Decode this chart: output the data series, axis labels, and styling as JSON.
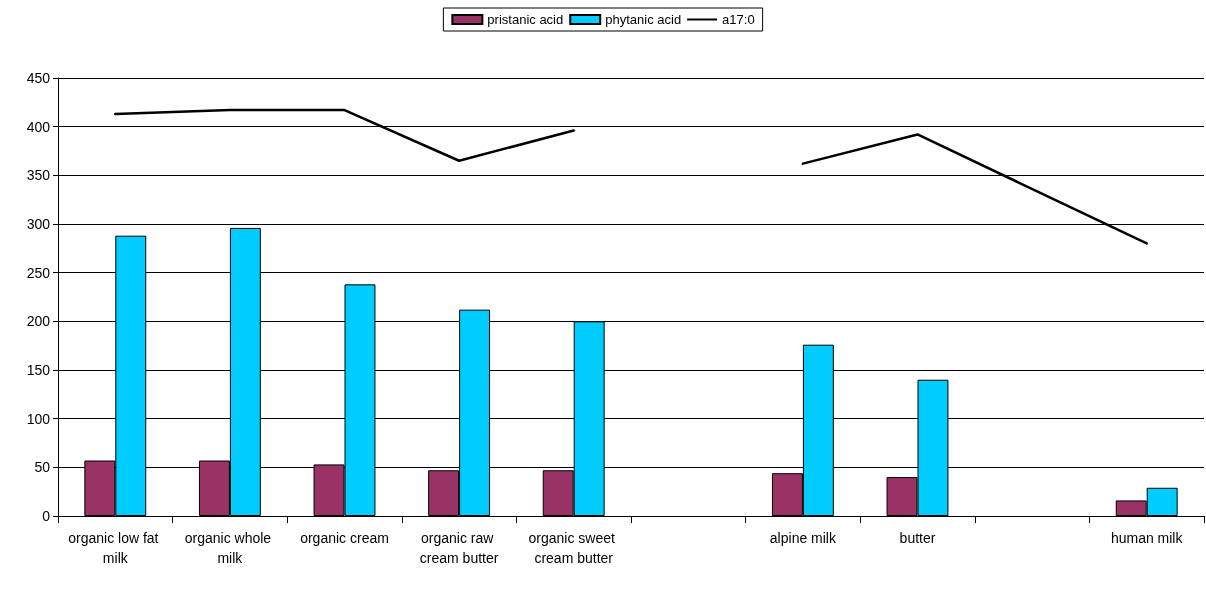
{
  "chart_data": {
    "type": "bar",
    "categories": [
      "organic low fat milk",
      "organic whole milk",
      "organic cream",
      "organic raw cream butter",
      "organic sweet cream butter",
      null,
      "alpine milk",
      "butter",
      null,
      "human milk"
    ],
    "series": [
      {
        "name": "pristanic acid",
        "color": "#993366",
        "values": [
          57,
          57,
          53,
          47,
          47,
          null,
          44,
          40,
          null,
          16
        ]
      },
      {
        "name": "phytanic acid",
        "color": "#00ccff",
        "values": [
          288,
          296,
          238,
          212,
          200,
          null,
          176,
          140,
          null,
          29
        ]
      },
      {
        "name": "a17:0",
        "type": "line",
        "color": "#000000",
        "x": [
          "organic low fat milk",
          "organic whole milk",
          "organic cream",
          "organic raw cream butter",
          "organic sweet cream butter"
        ],
        "values": [
          413,
          417,
          417,
          365,
          396
        ]
      },
      {
        "type": "line",
        "color": "#000000",
        "x": [
          "alpine milk",
          "butter",
          "human milk"
        ],
        "values": [
          362,
          392,
          280
        ]
      }
    ],
    "ylim": [
      0,
      450
    ],
    "yticks": [
      0,
      50,
      100,
      150,
      200,
      250,
      300,
      350,
      400,
      450
    ],
    "grid": "y",
    "legend": "top",
    "marker": "none",
    "line_style": "solid"
  }
}
